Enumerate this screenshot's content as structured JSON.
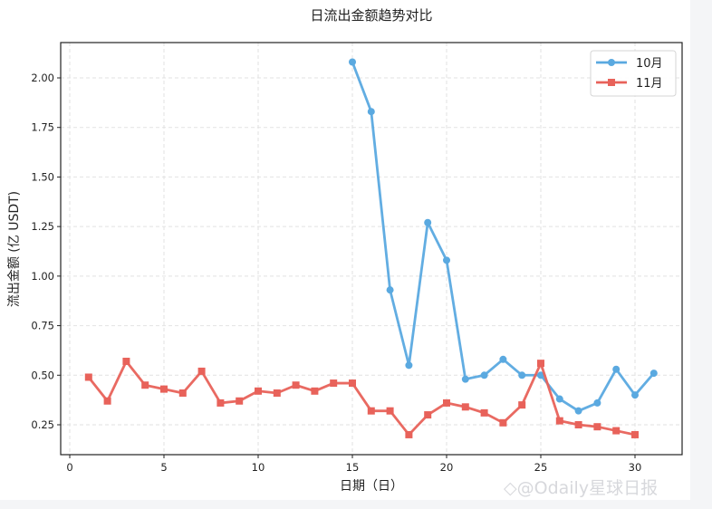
{
  "chart_data": {
    "type": "line",
    "title": "日流出金额趋势对比",
    "xlabel": "日期（日）",
    "ylabel": "流出金额 (亿 USDT)",
    "xlim": [
      -0.5,
      32.5
    ],
    "ylim": [
      0.11,
      2.18
    ],
    "xticks": [
      0,
      5,
      10,
      15,
      20,
      25,
      30
    ],
    "yticks": [
      0.25,
      0.5,
      0.75,
      1.0,
      1.25,
      1.5,
      1.75,
      2.0
    ],
    "ytick_labels": [
      "0.25",
      "0.50",
      "0.75",
      "1.00",
      "1.25",
      "1.50",
      "1.75",
      "2.00"
    ],
    "grid": true,
    "legend_position": "upper right",
    "series": [
      {
        "name": "10月",
        "color": "#5aa9e0",
        "marker": "circle",
        "x": [
          15,
          16,
          17,
          18,
          19,
          20,
          21,
          22,
          23,
          24,
          25,
          26,
          27,
          28,
          29,
          30,
          31
        ],
        "values": [
          2.08,
          1.83,
          0.93,
          0.55,
          1.27,
          1.08,
          0.48,
          0.5,
          0.58,
          0.5,
          0.5,
          0.38,
          0.32,
          0.36,
          0.53,
          0.4,
          0.51
        ]
      },
      {
        "name": "11月",
        "color": "#e8625a",
        "marker": "square",
        "x": [
          1,
          2,
          3,
          4,
          5,
          6,
          7,
          8,
          9,
          10,
          11,
          12,
          13,
          14,
          15,
          16,
          17,
          18,
          19,
          20,
          21,
          22,
          23,
          24,
          25,
          26,
          27,
          28,
          29,
          30
        ],
        "values": [
          0.49,
          0.37,
          0.57,
          0.45,
          0.43,
          0.41,
          0.52,
          0.36,
          0.37,
          0.42,
          0.41,
          0.45,
          0.42,
          0.46,
          0.46,
          0.32,
          0.32,
          0.2,
          0.3,
          0.36,
          0.34,
          0.31,
          0.26,
          0.35,
          0.56,
          0.27,
          0.25,
          0.24,
          0.22,
          0.2
        ]
      }
    ]
  },
  "watermark": "◇@Odaily星球日报"
}
